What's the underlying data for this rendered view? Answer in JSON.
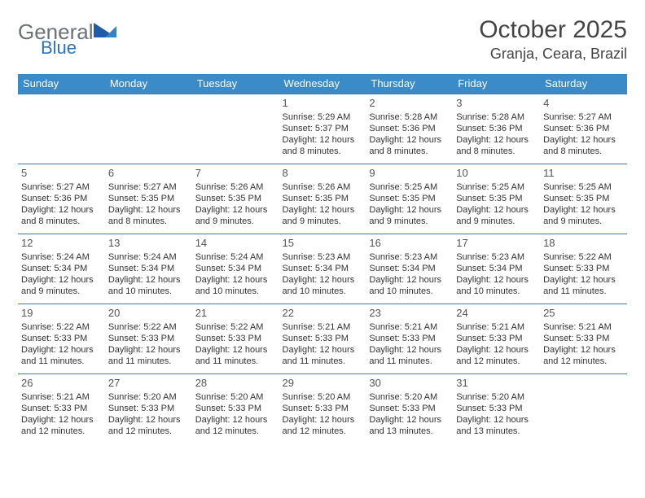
{
  "brand": {
    "word1": "General",
    "word2": "Blue"
  },
  "title": "October 2025",
  "location": "Granja, Ceara, Brazil",
  "colors": {
    "header_bg": "#3b8bc9",
    "header_fg": "#ffffff",
    "cell_border": "#3b7aa8",
    "text": "#333333",
    "title_text": "#444444",
    "logo_gray": "#6a7275",
    "logo_blue": "#2e74b5"
  },
  "weekdays": [
    "Sunday",
    "Monday",
    "Tuesday",
    "Wednesday",
    "Thursday",
    "Friday",
    "Saturday"
  ],
  "weeks": [
    [
      {
        "day": "",
        "lines": []
      },
      {
        "day": "",
        "lines": []
      },
      {
        "day": "",
        "lines": []
      },
      {
        "day": "1",
        "lines": [
          "Sunrise: 5:29 AM",
          "Sunset: 5:37 PM",
          "Daylight: 12 hours and 8 minutes."
        ]
      },
      {
        "day": "2",
        "lines": [
          "Sunrise: 5:28 AM",
          "Sunset: 5:36 PM",
          "Daylight: 12 hours and 8 minutes."
        ]
      },
      {
        "day": "3",
        "lines": [
          "Sunrise: 5:28 AM",
          "Sunset: 5:36 PM",
          "Daylight: 12 hours and 8 minutes."
        ]
      },
      {
        "day": "4",
        "lines": [
          "Sunrise: 5:27 AM",
          "Sunset: 5:36 PM",
          "Daylight: 12 hours and 8 minutes."
        ]
      }
    ],
    [
      {
        "day": "5",
        "lines": [
          "Sunrise: 5:27 AM",
          "Sunset: 5:36 PM",
          "Daylight: 12 hours and 8 minutes."
        ]
      },
      {
        "day": "6",
        "lines": [
          "Sunrise: 5:27 AM",
          "Sunset: 5:35 PM",
          "Daylight: 12 hours and 8 minutes."
        ]
      },
      {
        "day": "7",
        "lines": [
          "Sunrise: 5:26 AM",
          "Sunset: 5:35 PM",
          "Daylight: 12 hours and 9 minutes."
        ]
      },
      {
        "day": "8",
        "lines": [
          "Sunrise: 5:26 AM",
          "Sunset: 5:35 PM",
          "Daylight: 12 hours and 9 minutes."
        ]
      },
      {
        "day": "9",
        "lines": [
          "Sunrise: 5:25 AM",
          "Sunset: 5:35 PM",
          "Daylight: 12 hours and 9 minutes."
        ]
      },
      {
        "day": "10",
        "lines": [
          "Sunrise: 5:25 AM",
          "Sunset: 5:35 PM",
          "Daylight: 12 hours and 9 minutes."
        ]
      },
      {
        "day": "11",
        "lines": [
          "Sunrise: 5:25 AM",
          "Sunset: 5:35 PM",
          "Daylight: 12 hours and 9 minutes."
        ]
      }
    ],
    [
      {
        "day": "12",
        "lines": [
          "Sunrise: 5:24 AM",
          "Sunset: 5:34 PM",
          "Daylight: 12 hours and 9 minutes."
        ]
      },
      {
        "day": "13",
        "lines": [
          "Sunrise: 5:24 AM",
          "Sunset: 5:34 PM",
          "Daylight: 12 hours and 10 minutes."
        ]
      },
      {
        "day": "14",
        "lines": [
          "Sunrise: 5:24 AM",
          "Sunset: 5:34 PM",
          "Daylight: 12 hours and 10 minutes."
        ]
      },
      {
        "day": "15",
        "lines": [
          "Sunrise: 5:23 AM",
          "Sunset: 5:34 PM",
          "Daylight: 12 hours and 10 minutes."
        ]
      },
      {
        "day": "16",
        "lines": [
          "Sunrise: 5:23 AM",
          "Sunset: 5:34 PM",
          "Daylight: 12 hours and 10 minutes."
        ]
      },
      {
        "day": "17",
        "lines": [
          "Sunrise: 5:23 AM",
          "Sunset: 5:34 PM",
          "Daylight: 12 hours and 10 minutes."
        ]
      },
      {
        "day": "18",
        "lines": [
          "Sunrise: 5:22 AM",
          "Sunset: 5:33 PM",
          "Daylight: 12 hours and 11 minutes."
        ]
      }
    ],
    [
      {
        "day": "19",
        "lines": [
          "Sunrise: 5:22 AM",
          "Sunset: 5:33 PM",
          "Daylight: 12 hours and 11 minutes."
        ]
      },
      {
        "day": "20",
        "lines": [
          "Sunrise: 5:22 AM",
          "Sunset: 5:33 PM",
          "Daylight: 12 hours and 11 minutes."
        ]
      },
      {
        "day": "21",
        "lines": [
          "Sunrise: 5:22 AM",
          "Sunset: 5:33 PM",
          "Daylight: 12 hours and 11 minutes."
        ]
      },
      {
        "day": "22",
        "lines": [
          "Sunrise: 5:21 AM",
          "Sunset: 5:33 PM",
          "Daylight: 12 hours and 11 minutes."
        ]
      },
      {
        "day": "23",
        "lines": [
          "Sunrise: 5:21 AM",
          "Sunset: 5:33 PM",
          "Daylight: 12 hours and 11 minutes."
        ]
      },
      {
        "day": "24",
        "lines": [
          "Sunrise: 5:21 AM",
          "Sunset: 5:33 PM",
          "Daylight: 12 hours and 12 minutes."
        ]
      },
      {
        "day": "25",
        "lines": [
          "Sunrise: 5:21 AM",
          "Sunset: 5:33 PM",
          "Daylight: 12 hours and 12 minutes."
        ]
      }
    ],
    [
      {
        "day": "26",
        "lines": [
          "Sunrise: 5:21 AM",
          "Sunset: 5:33 PM",
          "Daylight: 12 hours and 12 minutes."
        ]
      },
      {
        "day": "27",
        "lines": [
          "Sunrise: 5:20 AM",
          "Sunset: 5:33 PM",
          "Daylight: 12 hours and 12 minutes."
        ]
      },
      {
        "day": "28",
        "lines": [
          "Sunrise: 5:20 AM",
          "Sunset: 5:33 PM",
          "Daylight: 12 hours and 12 minutes."
        ]
      },
      {
        "day": "29",
        "lines": [
          "Sunrise: 5:20 AM",
          "Sunset: 5:33 PM",
          "Daylight: 12 hours and 12 minutes."
        ]
      },
      {
        "day": "30",
        "lines": [
          "Sunrise: 5:20 AM",
          "Sunset: 5:33 PM",
          "Daylight: 12 hours and 13 minutes."
        ]
      },
      {
        "day": "31",
        "lines": [
          "Sunrise: 5:20 AM",
          "Sunset: 5:33 PM",
          "Daylight: 12 hours and 13 minutes."
        ]
      },
      {
        "day": "",
        "lines": []
      }
    ]
  ]
}
